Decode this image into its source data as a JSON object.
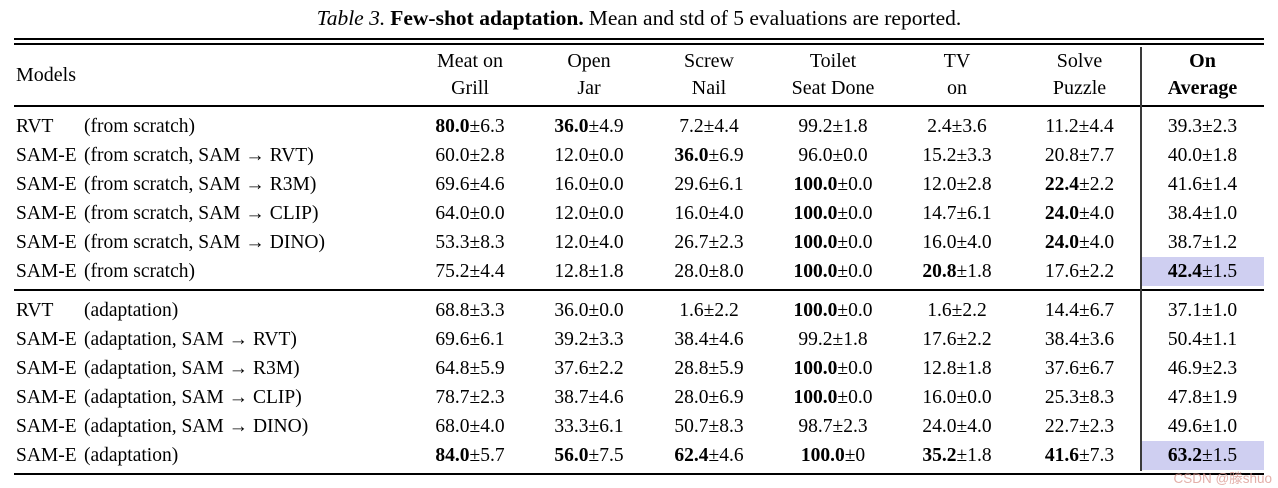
{
  "caption": {
    "label": "Table 3.",
    "title": "Few-shot adaptation.",
    "text": "Mean and std of 5 evaluations are reported."
  },
  "watermark": "CSDN @滕shuo",
  "colors": {
    "highlight": "#cfcff1",
    "rule": "#000000",
    "divider": "#3a3a3a",
    "watermark": "#dd9c94"
  },
  "table": {
    "model_header": "Models",
    "columns": [
      {
        "line1": "Meat on",
        "line2": "Grill"
      },
      {
        "line1": "Open",
        "line2": "Jar"
      },
      {
        "line1": "Screw",
        "line2": "Nail"
      },
      {
        "line1": "Toilet",
        "line2": "Seat Done"
      },
      {
        "line1": "TV",
        "line2": "on"
      },
      {
        "line1": "Solve",
        "line2": "Puzzle"
      },
      {
        "line1": "On",
        "line2": "Average",
        "bold": true
      }
    ],
    "groups": [
      {
        "rows": [
          {
            "model": "RVT",
            "variant": "(from scratch)",
            "cells": [
              {
                "mean": "80.0",
                "std": "6.3",
                "bold": true
              },
              {
                "mean": "36.0",
                "std": "4.9",
                "bold": true
              },
              {
                "mean": "7.2",
                "std": "4.4"
              },
              {
                "mean": "99.2",
                "std": "1.8"
              },
              {
                "mean": "2.4",
                "std": "3.6"
              },
              {
                "mean": "11.2",
                "std": "4.4"
              },
              {
                "mean": "39.3",
                "std": "2.3"
              }
            ]
          },
          {
            "model": "SAM-E",
            "variant": "(from scratch, SAM → RVT)",
            "cells": [
              {
                "mean": "60.0",
                "std": "2.8"
              },
              {
                "mean": "12.0",
                "std": "0.0"
              },
              {
                "mean": "36.0",
                "std": "6.9",
                "bold": true
              },
              {
                "mean": "96.0",
                "std": "0.0"
              },
              {
                "mean": "15.2",
                "std": "3.3"
              },
              {
                "mean": "20.8",
                "std": "7.7"
              },
              {
                "mean": "40.0",
                "std": "1.8"
              }
            ]
          },
          {
            "model": "SAM-E",
            "variant": "(from scratch, SAM → R3M)",
            "cells": [
              {
                "mean": "69.6",
                "std": "4.6"
              },
              {
                "mean": "16.0",
                "std": "0.0"
              },
              {
                "mean": "29.6",
                "std": "6.1"
              },
              {
                "mean": "100.0",
                "std": "0.0",
                "bold": true
              },
              {
                "mean": "12.0",
                "std": "2.8"
              },
              {
                "mean": "22.4",
                "std": "2.2",
                "bold": true
              },
              {
                "mean": "41.6",
                "std": "1.4"
              }
            ]
          },
          {
            "model": "SAM-E",
            "variant": "(from scratch, SAM → CLIP)",
            "cells": [
              {
                "mean": "64.0",
                "std": "0.0"
              },
              {
                "mean": "12.0",
                "std": "0.0"
              },
              {
                "mean": "16.0",
                "std": "4.0"
              },
              {
                "mean": "100.0",
                "std": "0.0",
                "bold": true
              },
              {
                "mean": "14.7",
                "std": "6.1"
              },
              {
                "mean": "24.0",
                "std": "4.0",
                "bold": true
              },
              {
                "mean": "38.4",
                "std": "1.0"
              }
            ]
          },
          {
            "model": "SAM-E",
            "variant": "(from scratch, SAM → DINO)",
            "cells": [
              {
                "mean": "53.3",
                "std": "8.3"
              },
              {
                "mean": "12.0",
                "std": "4.0"
              },
              {
                "mean": "26.7",
                "std": "2.3"
              },
              {
                "mean": "100.0",
                "std": "0.0",
                "bold": true
              },
              {
                "mean": "16.0",
                "std": "4.0"
              },
              {
                "mean": "24.0",
                "std": "4.0",
                "bold": true
              },
              {
                "mean": "38.7",
                "std": "1.2"
              }
            ]
          },
          {
            "model": "SAM-E",
            "variant": "(from scratch)",
            "cells": [
              {
                "mean": "75.2",
                "std": "4.4"
              },
              {
                "mean": "12.8",
                "std": "1.8"
              },
              {
                "mean": "28.0",
                "std": "8.0"
              },
              {
                "mean": "100.0",
                "std": "0.0",
                "bold": true
              },
              {
                "mean": "20.8",
                "std": "1.8",
                "bold": true
              },
              {
                "mean": "17.6",
                "std": "2.2"
              },
              {
                "mean": "42.4",
                "std": "1.5",
                "bold": true,
                "highlight": true
              }
            ]
          }
        ]
      },
      {
        "rows": [
          {
            "model": "RVT",
            "variant": "(adaptation)",
            "cells": [
              {
                "mean": "68.8",
                "std": "3.3"
              },
              {
                "mean": "36.0",
                "std": "0.0"
              },
              {
                "mean": "1.6",
                "std": "2.2"
              },
              {
                "mean": "100.0",
                "std": "0.0",
                "bold": true
              },
              {
                "mean": "1.6",
                "std": "2.2"
              },
              {
                "mean": "14.4",
                "std": "6.7"
              },
              {
                "mean": "37.1",
                "std": "1.0"
              }
            ]
          },
          {
            "model": "SAM-E",
            "variant": "(adaptation, SAM → RVT)",
            "cells": [
              {
                "mean": "69.6",
                "std": "6.1"
              },
              {
                "mean": "39.2",
                "std": "3.3"
              },
              {
                "mean": "38.4",
                "std": "4.6"
              },
              {
                "mean": "99.2",
                "std": "1.8"
              },
              {
                "mean": "17.6",
                "std": "2.2"
              },
              {
                "mean": "38.4",
                "std": "3.6"
              },
              {
                "mean": "50.4",
                "std": "1.1"
              }
            ]
          },
          {
            "model": "SAM-E",
            "variant": "(adaptation, SAM → R3M)",
            "cells": [
              {
                "mean": "64.8",
                "std": "5.9"
              },
              {
                "mean": "37.6",
                "std": "2.2"
              },
              {
                "mean": "28.8",
                "std": "5.9"
              },
              {
                "mean": "100.0",
                "std": "0.0",
                "bold": true
              },
              {
                "mean": "12.8",
                "std": "1.8"
              },
              {
                "mean": "37.6",
                "std": "6.7"
              },
              {
                "mean": "46.9",
                "std": "2.3"
              }
            ]
          },
          {
            "model": "SAM-E",
            "variant": "(adaptation, SAM → CLIP)",
            "cells": [
              {
                "mean": "78.7",
                "std": "2.3"
              },
              {
                "mean": "38.7",
                "std": "4.6"
              },
              {
                "mean": "28.0",
                "std": "6.9"
              },
              {
                "mean": "100.0",
                "std": "0.0",
                "bold": true
              },
              {
                "mean": "16.0",
                "std": "0.0"
              },
              {
                "mean": "25.3",
                "std": "8.3"
              },
              {
                "mean": "47.8",
                "std": "1.9"
              }
            ]
          },
          {
            "model": "SAM-E",
            "variant": "(adaptation, SAM → DINO)",
            "cells": [
              {
                "mean": "68.0",
                "std": "4.0"
              },
              {
                "mean": "33.3",
                "std": "6.1"
              },
              {
                "mean": "50.7",
                "std": "8.3"
              },
              {
                "mean": "98.7",
                "std": "2.3"
              },
              {
                "mean": "24.0",
                "std": "4.0"
              },
              {
                "mean": "22.7",
                "std": "2.3"
              },
              {
                "mean": "49.6",
                "std": "1.0"
              }
            ]
          },
          {
            "model": "SAM-E",
            "variant": "(adaptation)",
            "cells": [
              {
                "mean": "84.0",
                "std": "5.7",
                "bold": true
              },
              {
                "mean": "56.0",
                "std": "7.5",
                "bold": true
              },
              {
                "mean": "62.4",
                "std": "4.6",
                "bold": true
              },
              {
                "mean": "100.0",
                "std": "0",
                "bold": true
              },
              {
                "mean": "35.2",
                "std": "1.8",
                "bold": true
              },
              {
                "mean": "41.6",
                "std": "7.3",
                "bold": true
              },
              {
                "mean": "63.2",
                "std": "1.5",
                "bold": true,
                "highlight": true
              }
            ]
          }
        ]
      }
    ]
  }
}
